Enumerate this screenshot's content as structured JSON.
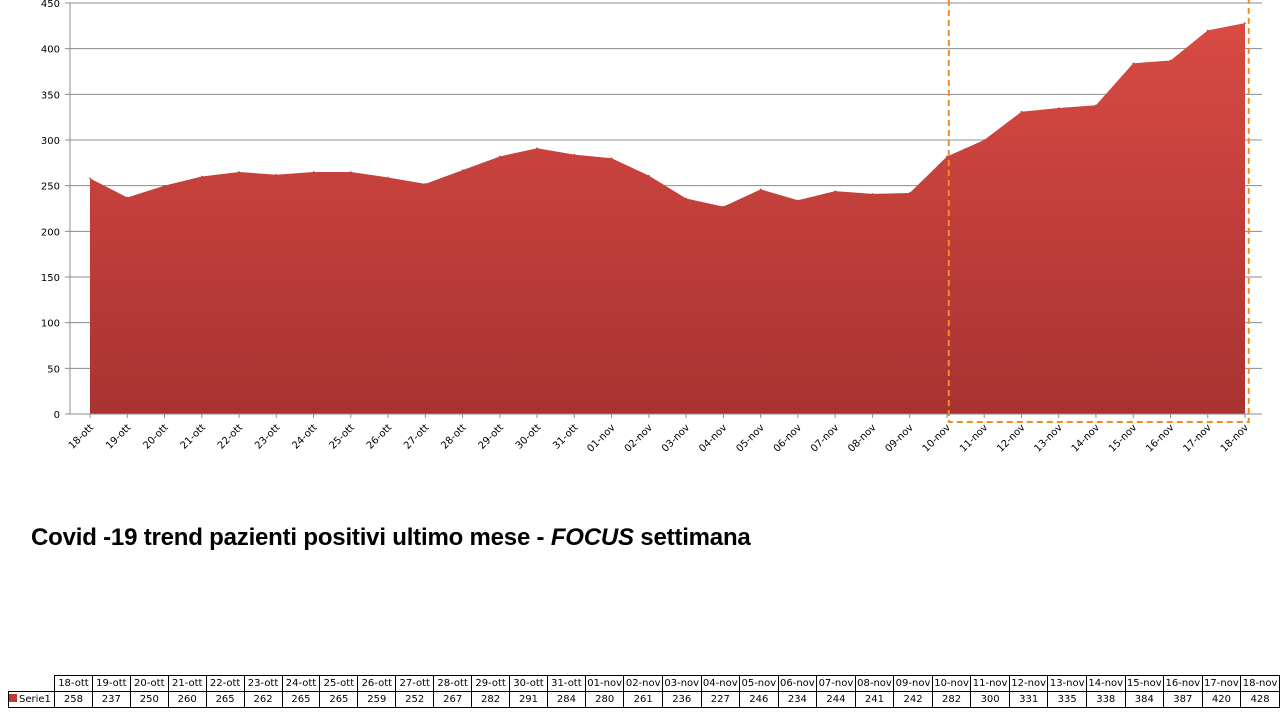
{
  "chart_data": {
    "type": "area",
    "categories": [
      "18-ott",
      "19-ott",
      "20-ott",
      "21-ott",
      "22-ott",
      "23-ott",
      "24-ott",
      "25-ott",
      "26-ott",
      "27-ott",
      "28-ott",
      "29-ott",
      "30-ott",
      "31-ott",
      "01-nov",
      "02-nov",
      "03-nov",
      "04-nov",
      "05-nov",
      "06-nov",
      "07-nov",
      "08-nov",
      "09-nov",
      "10-nov",
      "11-nov",
      "12-nov",
      "13-nov",
      "14-nov",
      "15-nov",
      "16-nov",
      "17-nov",
      "18-nov"
    ],
    "series": [
      {
        "name": "Serie1",
        "values": [
          258,
          237,
          250,
          260,
          265,
          262,
          265,
          265,
          259,
          252,
          267,
          282,
          291,
          284,
          280,
          261,
          236,
          227,
          246,
          234,
          244,
          241,
          242,
          282,
          300,
          331,
          335,
          338,
          384,
          387,
          420,
          428
        ]
      }
    ],
    "ylim": [
      0,
      450
    ],
    "yticks": [
      0,
      50,
      100,
      150,
      200,
      250,
      300,
      350,
      400,
      450
    ],
    "grid": true,
    "color": "#c0392b",
    "highlight": {
      "from": "11-nov",
      "to": "18-nov",
      "color": "#f28c28",
      "style": "dashed"
    }
  },
  "caption": {
    "prefix": "Covid -19 trend pazienti positivi ultimo mese - ",
    "emphasis": "FOCUS",
    "suffix": " settimana"
  },
  "table": {
    "series_label": "Serie1"
  }
}
